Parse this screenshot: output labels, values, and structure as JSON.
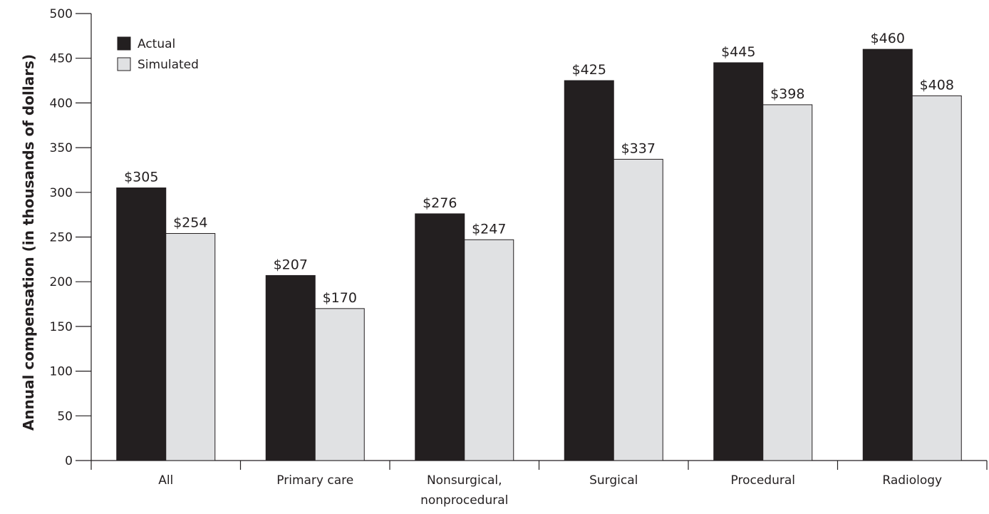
{
  "chart_data": {
    "type": "bar",
    "title": "",
    "xlabel": "",
    "ylabel": "Annual compensation (in thousands of dollars)",
    "ylim": [
      0,
      500
    ],
    "yticks": [
      0,
      50,
      100,
      150,
      200,
      250,
      300,
      350,
      400,
      450,
      500
    ],
    "categories": [
      [
        "All"
      ],
      [
        "Primary care"
      ],
      [
        "Nonsurgical,",
        "nonprocedural"
      ],
      [
        "Surgical"
      ],
      [
        "Procedural"
      ],
      [
        "Radiology"
      ]
    ],
    "series": [
      {
        "name": "Actual",
        "color": "#231f20",
        "values": [
          305,
          207,
          276,
          425,
          445,
          460
        ],
        "labels": [
          "$305",
          "$207",
          "$276",
          "$425",
          "$445",
          "$460"
        ]
      },
      {
        "name": "Simulated",
        "color": "#e0e1e3",
        "values": [
          254,
          170,
          247,
          337,
          398,
          408
        ],
        "labels": [
          "$254",
          "$170",
          "$247",
          "$337",
          "$398",
          "$408"
        ]
      }
    ],
    "legend": "top-left",
    "grid": false
  }
}
